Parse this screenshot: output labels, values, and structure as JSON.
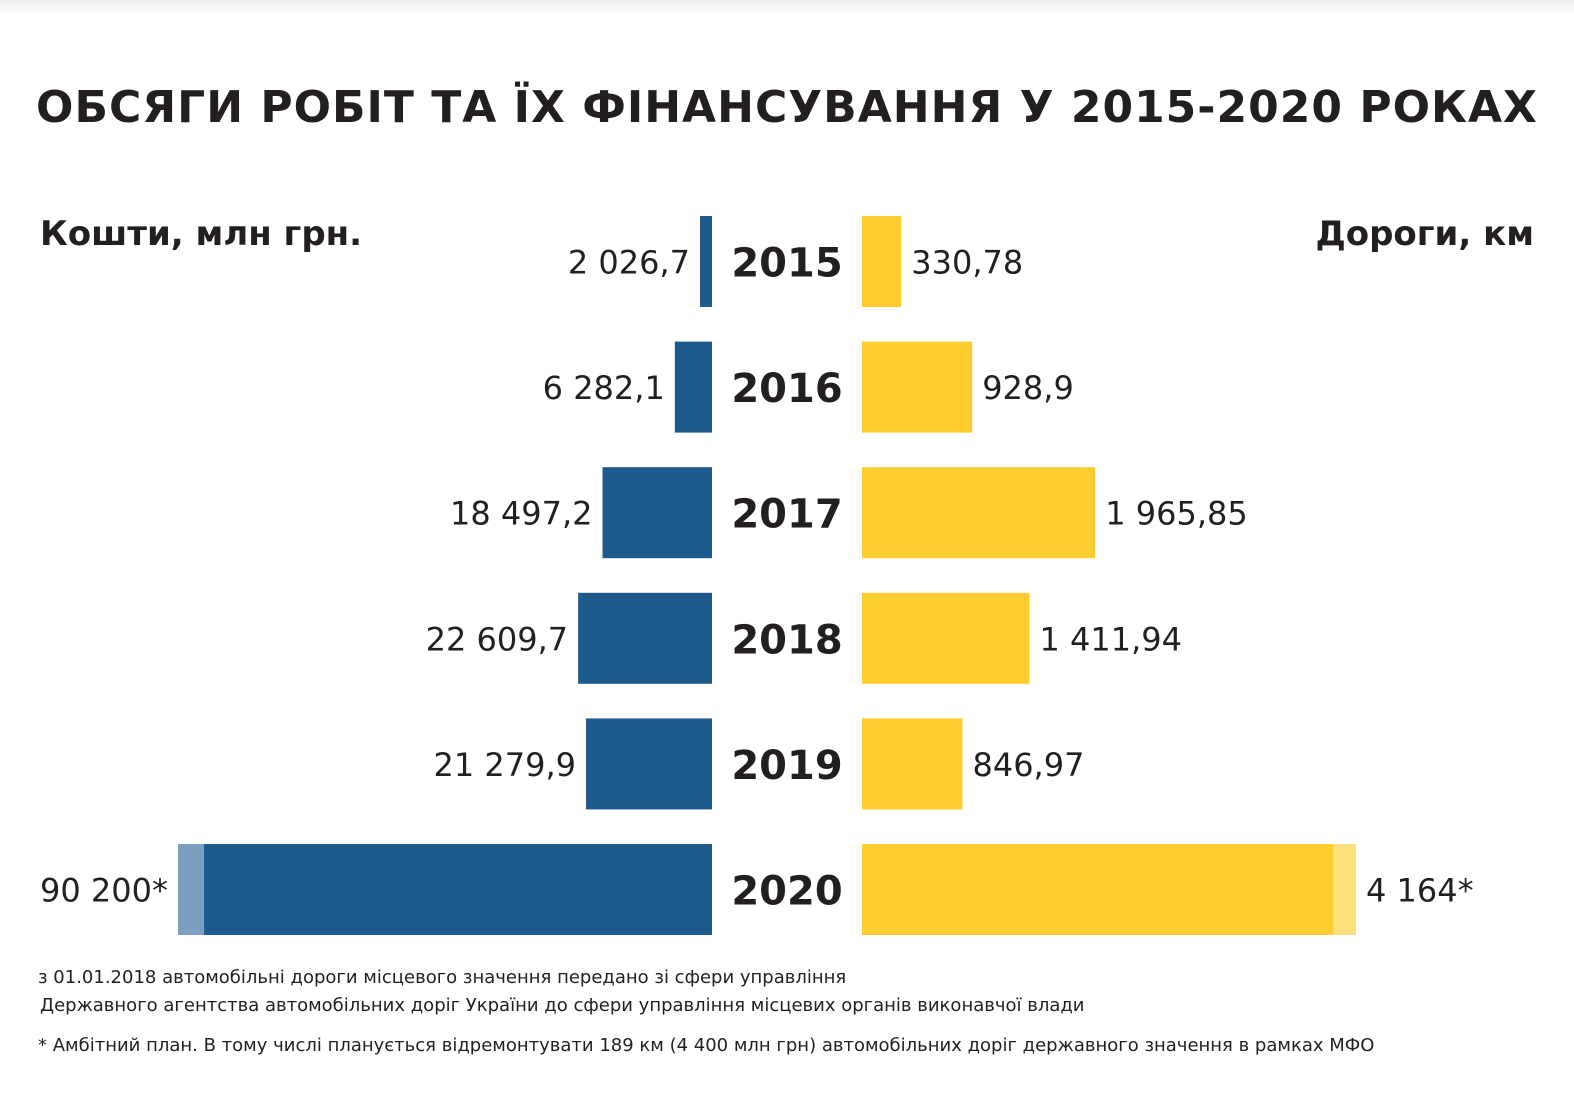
{
  "title": "ОБСЯГИ РОБІТ ТА ЇХ ФІНАНСУВАННЯ У 2015-2020 РОКАХ",
  "chart_data": {
    "type": "bar",
    "orientation": "horizontal",
    "layout": "butterfly",
    "categories": [
      "2015",
      "2016",
      "2017",
      "2018",
      "2019",
      "2020"
    ],
    "series": [
      {
        "name": "Кошти, млн грн.",
        "side": "left",
        "color": "#1f5a8f",
        "values": [
          2026.7,
          6282.1,
          18497.2,
          22609.7,
          21279.9,
          90200
        ],
        "value_labels": [
          "2 026,7",
          "6 282,1",
          "18 497,2",
          "22 609,7",
          "21 279,9",
          "90 200*"
        ],
        "highlight_part": {
          "category": "2020",
          "value": 4400,
          "color": "#7a9fc0"
        }
      },
      {
        "name": "Дороги, км",
        "side": "right",
        "color": "#fdcc2f",
        "values": [
          330.78,
          928.9,
          1965.85,
          1411.94,
          846.97,
          4164
        ],
        "value_labels": [
          "330,78",
          "928,9",
          "1 965,85",
          "1 411,94",
          "846,97",
          "4 164*"
        ],
        "highlight_part": {
          "category": "2020",
          "value": 189,
          "color": "#fde17d"
        }
      }
    ]
  },
  "footnotes": [
    "з 01.01.2018 автомобільні дороги місцевого значення передано зі сфери управління",
    "Державного агентства автомобільних доріг України до сфери управління місцевих органів виконавчої влади",
    "* Амбітний план. В тому числі планується відремонтувати 189 км (4 400 млн грн) автомобільних доріг державного значення в рамках МФО"
  ]
}
